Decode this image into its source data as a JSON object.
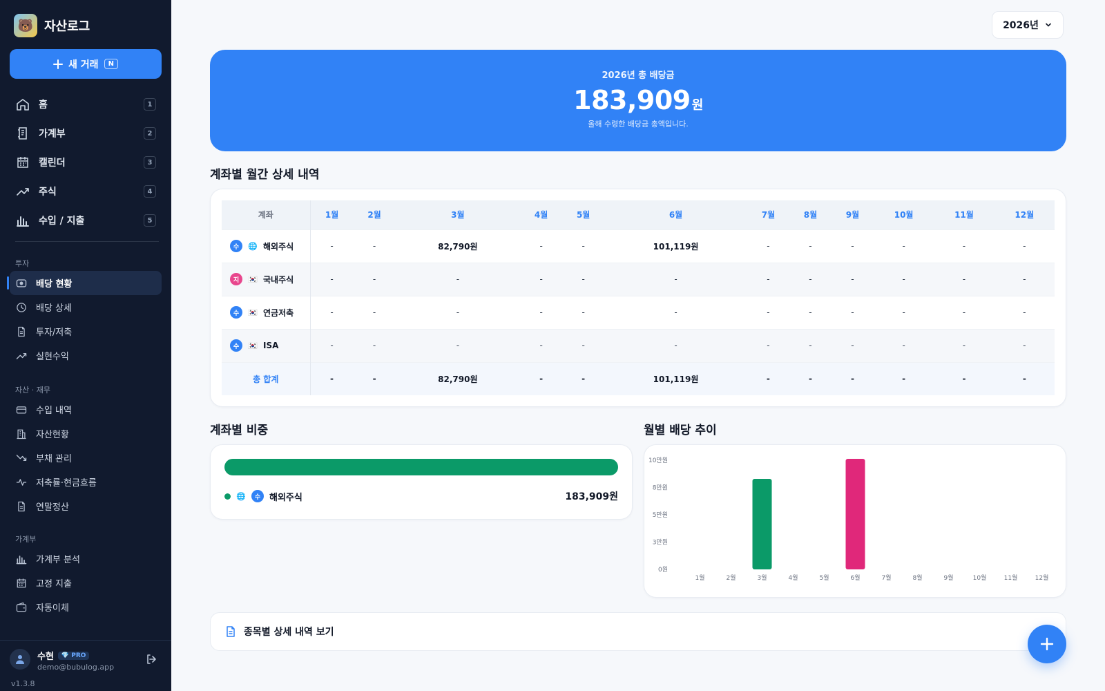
{
  "brand": {
    "name": "자산로그"
  },
  "sidebar": {
    "new_transaction": {
      "label": "새 거래",
      "shortcut": "N"
    },
    "main_nav": [
      {
        "label": "홈",
        "key": "1",
        "icon": "home-icon"
      },
      {
        "label": "가계부",
        "key": "2",
        "icon": "ledger-icon"
      },
      {
        "label": "캘린더",
        "key": "3",
        "icon": "calendar-icon"
      },
      {
        "label": "주식",
        "key": "4",
        "icon": "trending-up-icon"
      },
      {
        "label": "수입 / 지출",
        "key": "5",
        "icon": "bar-chart-icon"
      }
    ],
    "sections": [
      {
        "title": "투자",
        "items": [
          {
            "label": "배당 현황",
            "icon": "dividend-icon",
            "active": true
          },
          {
            "label": "배당 상세",
            "icon": "clock-icon"
          },
          {
            "label": "투자/저축",
            "icon": "document-icon"
          },
          {
            "label": "실현수익",
            "icon": "trending-up-icon"
          }
        ]
      },
      {
        "title": "자산 · 재무",
        "items": [
          {
            "label": "수입 내역",
            "icon": "card-icon"
          },
          {
            "label": "자산현황",
            "icon": "building-icon"
          },
          {
            "label": "부채 관리",
            "icon": "trending-down-icon"
          },
          {
            "label": "저축률·현금흐름",
            "icon": "pulse-icon"
          },
          {
            "label": "연말정산",
            "icon": "document-icon"
          }
        ]
      },
      {
        "title": "가계부",
        "items": [
          {
            "label": "가계부 분석",
            "icon": "bar-chart-icon"
          },
          {
            "label": "고정 지출",
            "icon": "calendar-icon"
          },
          {
            "label": "자동이체",
            "icon": "wallet-icon"
          }
        ]
      }
    ],
    "user": {
      "name": "수현",
      "plan": "PRO",
      "email": "demo@bubulog.app",
      "version": "v1.3.8"
    }
  },
  "header": {
    "year_select": "2026년"
  },
  "hero": {
    "title": "2026년 총 배당금",
    "amount": "183,909",
    "unit": "원",
    "subtitle": "올해 수령한 배당금 총액입니다."
  },
  "monthly_table": {
    "title": "계좌별 월간 상세 내역",
    "account_header": "계좌",
    "months": [
      "1월",
      "2월",
      "3월",
      "4월",
      "5월",
      "6월",
      "7월",
      "8월",
      "9월",
      "10월",
      "11월",
      "12월"
    ],
    "rows": [
      {
        "badge": "수",
        "badge_color": "#3182f6",
        "flag": "🌐",
        "name": "해외주식",
        "values": [
          "-",
          "-",
          "82,790원",
          "-",
          "-",
          "101,119원",
          "-",
          "-",
          "-",
          "-",
          "-",
          "-"
        ]
      },
      {
        "badge": "지",
        "badge_color": "#e8468d",
        "flag": "🇰🇷",
        "name": "국내주식",
        "values": [
          "-",
          "-",
          "-",
          "-",
          "-",
          "-",
          "-",
          "-",
          "-",
          "-",
          "-",
          "-"
        ]
      },
      {
        "badge": "수",
        "badge_color": "#3182f6",
        "flag": "🇰🇷",
        "name": "연금저축",
        "values": [
          "-",
          "-",
          "-",
          "-",
          "-",
          "-",
          "-",
          "-",
          "-",
          "-",
          "-",
          "-"
        ]
      },
      {
        "badge": "수",
        "badge_color": "#3182f6",
        "flag": "🇰🇷",
        "name": "ISA",
        "values": [
          "-",
          "-",
          "-",
          "-",
          "-",
          "-",
          "-",
          "-",
          "-",
          "-",
          "-",
          "-"
        ]
      }
    ],
    "total": {
      "label": "총 합계",
      "values": [
        "-",
        "-",
        "82,790원",
        "-",
        "-",
        "101,119원",
        "-",
        "-",
        "-",
        "-",
        "-",
        "-"
      ]
    }
  },
  "share": {
    "title": "계좌별 비중",
    "accent": "#0b9a68",
    "items": [
      {
        "badge": "수",
        "flag": "🌐",
        "name": "해외주식",
        "amount": "183,909원",
        "share": 1.0
      }
    ]
  },
  "trend": {
    "title": "월별 배당 추이"
  },
  "chart_data": {
    "type": "bar",
    "title": "월별 배당 추이",
    "categories": [
      "1월",
      "2월",
      "3월",
      "4월",
      "5월",
      "6월",
      "7월",
      "8월",
      "9월",
      "10월",
      "11월",
      "12월"
    ],
    "values": [
      0,
      0,
      82790,
      0,
      0,
      101119,
      0,
      0,
      0,
      0,
      0,
      0
    ],
    "bar_colors": [
      "#0b9a68",
      "#0b9a68",
      "#0b9a68",
      "#0b9a68",
      "#0b9a68",
      "#e0287a",
      "#0b9a68",
      "#0b9a68",
      "#0b9a68",
      "#0b9a68",
      "#0b9a68",
      "#0b9a68"
    ],
    "yticks": [
      {
        "value": 0,
        "label": "0원"
      },
      {
        "value": 25000,
        "label": "3만원"
      },
      {
        "value": 50000,
        "label": "5만원"
      },
      {
        "value": 75000,
        "label": "8만원"
      },
      {
        "value": 100000,
        "label": "10만원"
      }
    ],
    "ylim": [
      0,
      101119
    ],
    "grid": false
  },
  "footer_link": {
    "label": "종목별 상세 내역 보기"
  }
}
